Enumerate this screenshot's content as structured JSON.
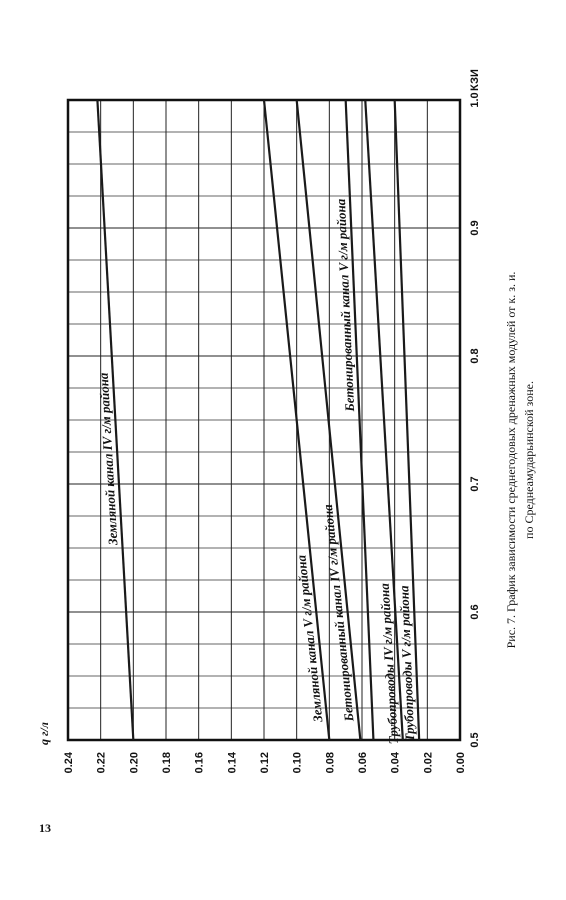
{
  "chart_data": {
    "type": "line",
    "ylabel": "q г/л",
    "xlabel": "КЗИ",
    "xlim": [
      0.5,
      1.0
    ],
    "ylim": [
      0,
      0.24
    ],
    "xticks": [
      0.5,
      0.6,
      0.7,
      0.8,
      0.9,
      {
        "value": 1.0,
        "label": "1.0"
      }
    ],
    "xminorticks": [
      0.525,
      0.55,
      0.575,
      0.625,
      0.65,
      0.675,
      0.725,
      0.75,
      0.775,
      0.825,
      0.85,
      0.875,
      0.925,
      0.95,
      0.975
    ],
    "yticks": [
      {
        "value": 0,
        "label": "0.00"
      },
      {
        "value": 0.02,
        "label": "0.02"
      },
      {
        "value": 0.04,
        "label": "0.04"
      },
      {
        "value": 0.06,
        "label": "0.06"
      },
      {
        "value": 0.08,
        "label": "0.08"
      },
      {
        "value": 0.1,
        "label": "0.10"
      },
      {
        "value": 0.12,
        "label": "0.12"
      },
      {
        "value": 0.14,
        "label": "0.14"
      },
      {
        "value": 0.16,
        "label": "0.16"
      },
      {
        "value": 0.18,
        "label": "0.18"
      },
      {
        "value": 0.2,
        "label": "0.20"
      },
      {
        "value": 0.22,
        "label": "0.22"
      },
      {
        "value": 0.24,
        "label": "0.24"
      }
    ],
    "grid": true,
    "x": [
      0.5,
      1.0
    ],
    "series": [
      {
        "name": "Земляной канал IV г/м района",
        "color": "#1a1a1a",
        "values": [
          0.2,
          0.222
        ]
      },
      {
        "name": "Земляной канал V г/м района",
        "color": "#1a1a1a",
        "values": [
          0.08,
          0.12
        ]
      },
      {
        "name": "Бетонированный канал IV г/м района",
        "color": "#1a1a1a",
        "values": [
          0.061,
          0.1
        ]
      },
      {
        "name": "Бетонированный канал V г/м района",
        "color": "#1a1a1a",
        "values": [
          0.053,
          0.07
        ]
      },
      {
        "name": "Трубопроводы IV г/м района",
        "color": "#1a1a1a",
        "values": [
          0.035,
          0.058
        ]
      },
      {
        "name": "Трубопроводы V г/м района",
        "color": "#1a1a1a",
        "values": [
          0.025,
          0.04
        ]
      }
    ]
  },
  "caption": [
    "Рис. 7. График зависимости среднегодовых дренажных модулей от к. з. и.",
    "по Среднеамударьинской зоне."
  ],
  "page_number": "13"
}
